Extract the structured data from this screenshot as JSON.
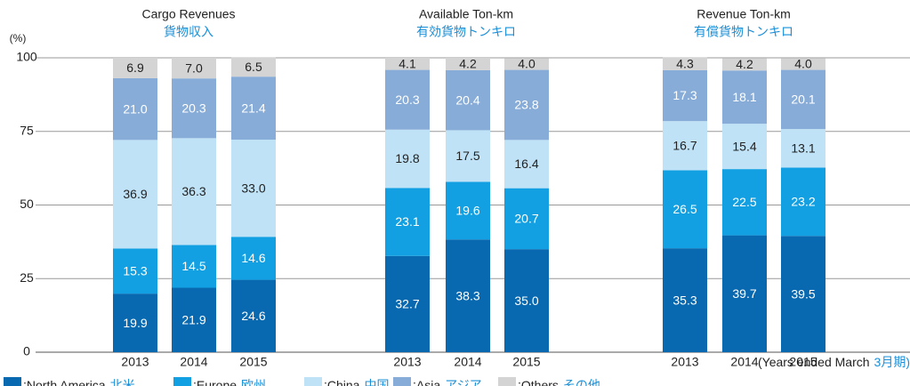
{
  "chart_data": [
    {
      "type": "bar",
      "stacked": true,
      "title": "Cargo Revenues",
      "subtitle": "貨物収入",
      "y_label": "(%)",
      "ylim": [
        0,
        100
      ],
      "yticks": [
        0,
        25,
        50,
        75,
        100
      ],
      "grid": true,
      "categories": [
        "2013",
        "2014",
        "2015"
      ],
      "series": [
        {
          "name": "North America",
          "name_ja": "北米",
          "color": "#0868b0",
          "values": [
            19.9,
            21.9,
            24.6
          ],
          "value_labels": [
            "19.9",
            "21.9",
            "24.6"
          ]
        },
        {
          "name": "Europe",
          "name_ja": "欧州",
          "color": "#12a0e2",
          "values": [
            15.3,
            14.5,
            14.6
          ],
          "value_labels": [
            "15.3",
            "14.5",
            "14.6"
          ]
        },
        {
          "name": "China",
          "name_ja": "中国",
          "color": "#bfe2f7",
          "values": [
            36.9,
            36.3,
            33.0
          ],
          "value_labels": [
            "36.9",
            "36.3",
            "33.0"
          ]
        },
        {
          "name": "Asia",
          "name_ja": "アジア",
          "color": "#88acd8",
          "values": [
            21.0,
            20.3,
            21.4
          ],
          "value_labels": [
            "21.0",
            "20.3",
            "21.4"
          ]
        },
        {
          "name": "Others",
          "name_ja": "その他",
          "color": "#d4d4d4",
          "values": [
            6.9,
            7.0,
            6.5
          ],
          "value_labels": [
            "6.9",
            "7.0",
            "6.5"
          ]
        }
      ]
    },
    {
      "type": "bar",
      "stacked": true,
      "title": "Available Ton-km",
      "subtitle": "有効貨物トンキロ",
      "categories": [
        "2013",
        "2014",
        "2015"
      ],
      "series": [
        {
          "color": "#0868b0",
          "values": [
            32.7,
            38.3,
            35.0
          ],
          "value_labels": [
            "32.7",
            "38.3",
            "35.0"
          ]
        },
        {
          "color": "#12a0e2",
          "values": [
            23.1,
            19.6,
            20.7
          ],
          "value_labels": [
            "23.1",
            "19.6",
            "20.7"
          ]
        },
        {
          "color": "#bfe2f7",
          "values": [
            19.8,
            17.5,
            16.4
          ],
          "value_labels": [
            "19.8",
            "17.5",
            "16.4"
          ]
        },
        {
          "color": "#88acd8",
          "values": [
            20.3,
            20.4,
            23.8
          ],
          "value_labels": [
            "20.3",
            "20.4",
            "23.8"
          ]
        },
        {
          "color": "#d4d4d4",
          "values": [
            4.1,
            4.2,
            4.0
          ],
          "value_labels": [
            "4.1",
            "4.2",
            "4.0"
          ]
        }
      ]
    },
    {
      "type": "bar",
      "stacked": true,
      "title": "Revenue Ton-km",
      "subtitle": "有償貨物トンキロ",
      "categories": [
        "2013",
        "2014",
        "2015"
      ],
      "series": [
        {
          "color": "#0868b0",
          "values": [
            35.3,
            39.7,
            39.5
          ],
          "value_labels": [
            "35.3",
            "39.7",
            "39.5"
          ]
        },
        {
          "color": "#12a0e2",
          "values": [
            26.5,
            22.5,
            23.2
          ],
          "value_labels": [
            "26.5",
            "22.5",
            "23.2"
          ]
        },
        {
          "color": "#bfe2f7",
          "values": [
            16.7,
            15.4,
            13.1
          ],
          "value_labels": [
            "16.7",
            "15.4",
            "13.1"
          ]
        },
        {
          "color": "#88acd8",
          "values": [
            17.3,
            18.1,
            20.1
          ],
          "value_labels": [
            "17.3",
            "18.1",
            "20.1"
          ]
        },
        {
          "color": "#d4d4d4",
          "values": [
            4.3,
            4.2,
            4.0
          ],
          "value_labels": [
            "4.3",
            "4.2",
            "4.0"
          ]
        }
      ]
    }
  ],
  "note": "(Years ended March",
  "note_ja": "3月期)"
}
